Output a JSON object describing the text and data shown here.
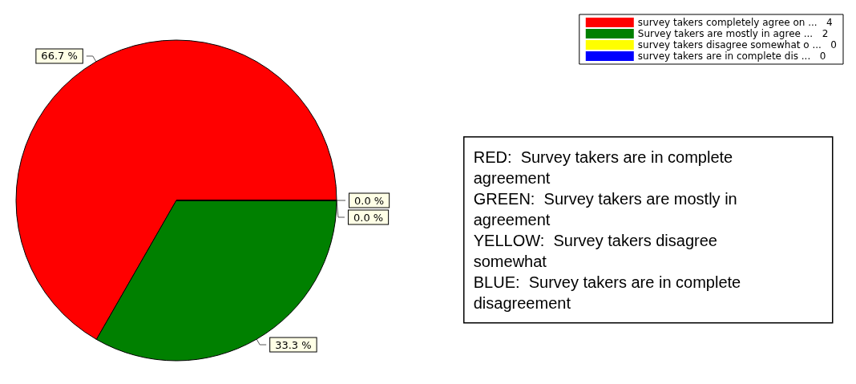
{
  "chart_data": {
    "type": "pie",
    "categories": [
      "survey takers completely agree on ...   4",
      "Survey takers are mostly in agree ...   2",
      "survey takers disagree somewhat o ...   0",
      "survey takers are in complete dis ...   0"
    ],
    "values": [
      66.7,
      33.3,
      0,
      0
    ],
    "colors": [
      "#ff0000",
      "#008000",
      "#ffff00",
      "#0000ff"
    ],
    "value_labels": [
      "66.7 %",
      "33.3 %",
      "0.0 %",
      "0.0 %"
    ],
    "legend": "top right",
    "annotations": [
      "RED:  Survey takers are in complete agreement",
      "GREEN:  Survey takers are mostly in agreement",
      "YELLOW:  Survey takers disagree somewhat",
      "BLUE:  Survey takers are in complete disagreement"
    ]
  }
}
